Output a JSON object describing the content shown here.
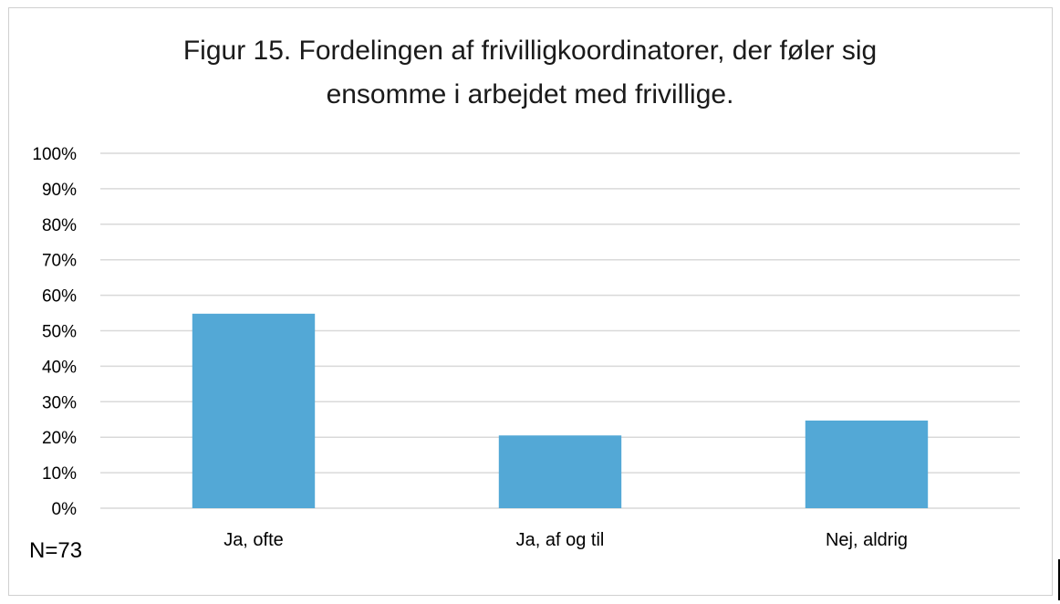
{
  "chart_data": {
    "type": "bar",
    "title": "Figur 15. Fordelingen af frivilligkoordinatorer, der føler sig\nensomme i arbejdet med frivillige.",
    "categories": [
      "Ja, ofte",
      "Ja, af og til",
      "Nej, aldrig"
    ],
    "values": [
      54.8,
      20.5,
      24.7
    ],
    "ylim": [
      0,
      100
    ],
    "yticks": [
      "0%",
      "10%",
      "20%",
      "30%",
      "40%",
      "50%",
      "60%",
      "70%",
      "80%",
      "90%",
      "100%"
    ],
    "xlabel": "",
    "ylabel": "",
    "grid": true,
    "bar_color": "#53a8d6",
    "grid_color": "#d9d9d9",
    "note": "N=73"
  }
}
